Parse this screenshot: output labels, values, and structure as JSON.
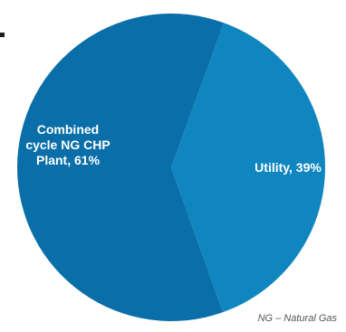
{
  "chart_data": {
    "type": "pie",
    "categories": [
      "Utility",
      "Combined cycle NG CHP Plant"
    ],
    "values": [
      39,
      61
    ],
    "colors": [
      "#0f86c0",
      "#0a6ea8"
    ],
    "labels": [
      [
        "Utility, 39%"
      ],
      [
        "Combined",
        "cycle NG CHP",
        "Plant, 61%"
      ]
    ],
    "title": "",
    "legend": "none",
    "footnote": "NG – Natural Gas"
  }
}
